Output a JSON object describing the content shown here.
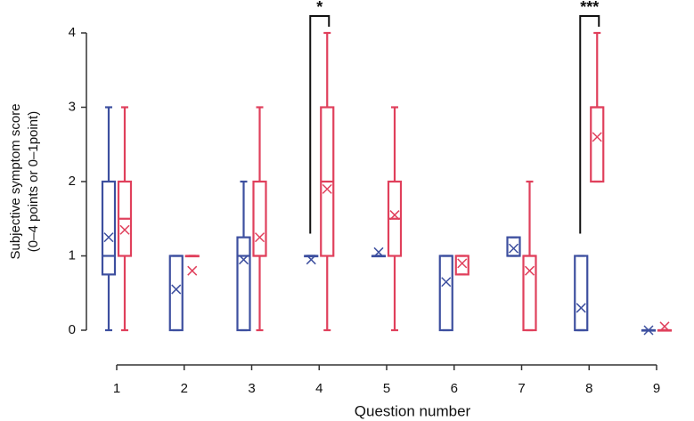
{
  "chart_data": {
    "type": "box",
    "ylabel": [
      "Subjective symptom score",
      "(0–4 points or 0–1point)"
    ],
    "xlabel": "Question number",
    "categories": [
      "1",
      "2",
      "3",
      "4",
      "5",
      "6",
      "7",
      "8",
      "9"
    ],
    "ylim": [
      0,
      4
    ],
    "yticks": [
      0,
      1,
      2,
      3,
      4
    ],
    "series": [
      {
        "color": "#3d4f9f",
        "boxes": [
          {
            "min": 0,
            "q1": 0.75,
            "median": 1,
            "q3": 2,
            "max": 3,
            "mean": 1.25
          },
          {
            "min": 0,
            "q1": 0,
            "median": 1,
            "q3": 1,
            "max": 1,
            "mean": 0.55
          },
          {
            "min": 0,
            "q1": 0,
            "median": 1,
            "q3": 1.25,
            "max": 2,
            "mean": 0.95
          },
          {
            "min": 1,
            "q1": 1,
            "median": 1,
            "q3": 1,
            "max": 1,
            "mean": 0.95
          },
          {
            "min": 1,
            "q1": 1,
            "median": 1,
            "q3": 1,
            "max": 1,
            "mean": 1.05
          },
          {
            "min": 0,
            "q1": 0,
            "median": 1,
            "q3": 1,
            "max": 1,
            "mean": 0.65
          },
          {
            "min": 1,
            "q1": 1,
            "median": 1,
            "q3": 1.25,
            "max": 1.25,
            "mean": 1.1
          },
          {
            "min": 0,
            "q1": 0,
            "median": 0,
            "q3": 1,
            "max": 1,
            "mean": 0.3
          },
          {
            "min": 0,
            "q1": 0,
            "median": 0,
            "q3": 0,
            "max": 0,
            "mean": 0
          }
        ]
      },
      {
        "color": "#e0405c",
        "boxes": [
          {
            "min": 0,
            "q1": 1,
            "median": 1.5,
            "q3": 2,
            "max": 3,
            "mean": 1.35
          },
          {
            "min": 1,
            "q1": 1,
            "median": 1,
            "q3": 1,
            "max": 1,
            "mean": 0.8
          },
          {
            "min": 0,
            "q1": 1,
            "median": 1,
            "q3": 2,
            "max": 3,
            "mean": 1.25
          },
          {
            "min": 0,
            "q1": 1,
            "median": 2,
            "q3": 3,
            "max": 4,
            "mean": 1.9
          },
          {
            "min": 0,
            "q1": 1,
            "median": 1.5,
            "q3": 2,
            "max": 3,
            "mean": 1.55
          },
          {
            "min": 0.75,
            "q1": 0.75,
            "median": 1,
            "q3": 1,
            "max": 1,
            "mean": 0.9
          },
          {
            "min": 0,
            "q1": 0,
            "median": 1,
            "q3": 1,
            "max": 2,
            "mean": 0.8
          },
          {
            "min": 2,
            "q1": 2,
            "median": 3,
            "q3": 3,
            "max": 4,
            "mean": 2.6
          },
          {
            "min": 0,
            "q1": 0,
            "median": 0,
            "q3": 0,
            "max": 0,
            "mean": 0.05
          }
        ]
      }
    ],
    "annotations": [
      {
        "text": "*",
        "category": "4"
      },
      {
        "text": "***",
        "category": "8"
      }
    ]
  }
}
